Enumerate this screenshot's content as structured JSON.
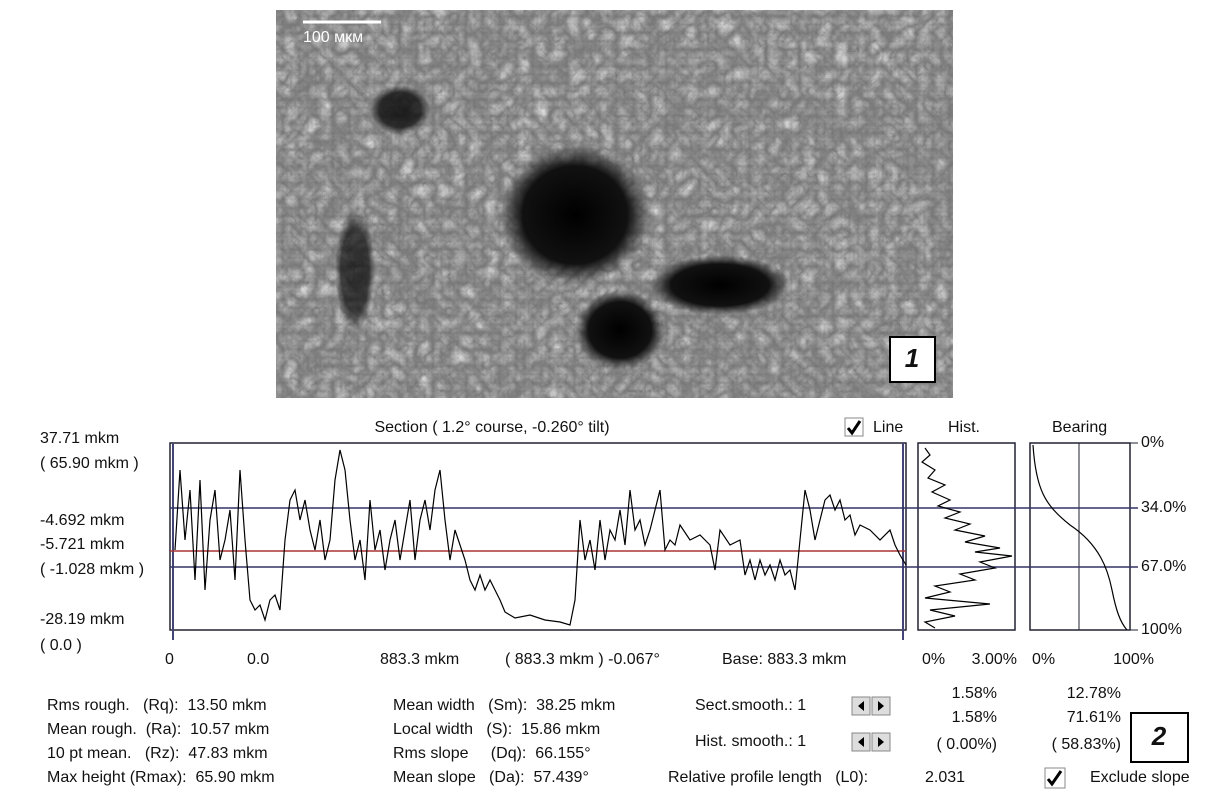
{
  "image": {
    "scale_label": "100 мкм",
    "panel_label": "1"
  },
  "panel": {
    "label": "2",
    "section": {
      "title": "Section ( 1.2° course, -0.260° tilt)",
      "line_checkbox": "Line",
      "y_labels": [
        "37.71 mkm",
        "( 65.90 mkm )",
        "-4.692 mkm",
        "-5.721 mkm",
        "( -1.028 mkm )",
        "-28.19 mkm",
        "( 0.0 )"
      ],
      "x_labels": [
        "0",
        "0.0",
        "883.3 mkm",
        "( 883.3 mkm ) -0.067°",
        "Base: 883.3 mkm"
      ]
    },
    "hist": {
      "title": "Hist.",
      "x_labels": [
        "0%",
        "3.00%"
      ],
      "stats": [
        "1.58%",
        "1.58%",
        "( 0.00%)"
      ]
    },
    "bearing": {
      "title": "Bearing",
      "x_labels": [
        "0%",
        "100%"
      ],
      "y_labels": [
        "0%",
        "34.0%",
        "67.0%",
        "100%"
      ],
      "stats": [
        "12.78%",
        "71.61%",
        "( 58.83%)"
      ]
    },
    "stats_left": [
      "Rms rough.   (Rq):  13.50 mkm",
      "Mean rough.  (Ra):  10.57 mkm",
      "10 pt mean.   (Rz):  47.83 mkm",
      "Max height (Rmax):  65.90 mkm"
    ],
    "stats_mid": [
      "Mean width   (Sm):  38.25 mkm",
      "Local width   (S):  15.86 mkm",
      "Rms slope     (Dq):  66.155°",
      "Mean slope   (Da):  57.439°"
    ],
    "sect_smooth": "Sect.smooth.: 1",
    "hist_smooth": "Hist. smooth.: 1",
    "relative_length": "Relative profile length   (L0):",
    "relative_length_value": "2.031",
    "exclude_slope": "Exclude slope"
  }
}
